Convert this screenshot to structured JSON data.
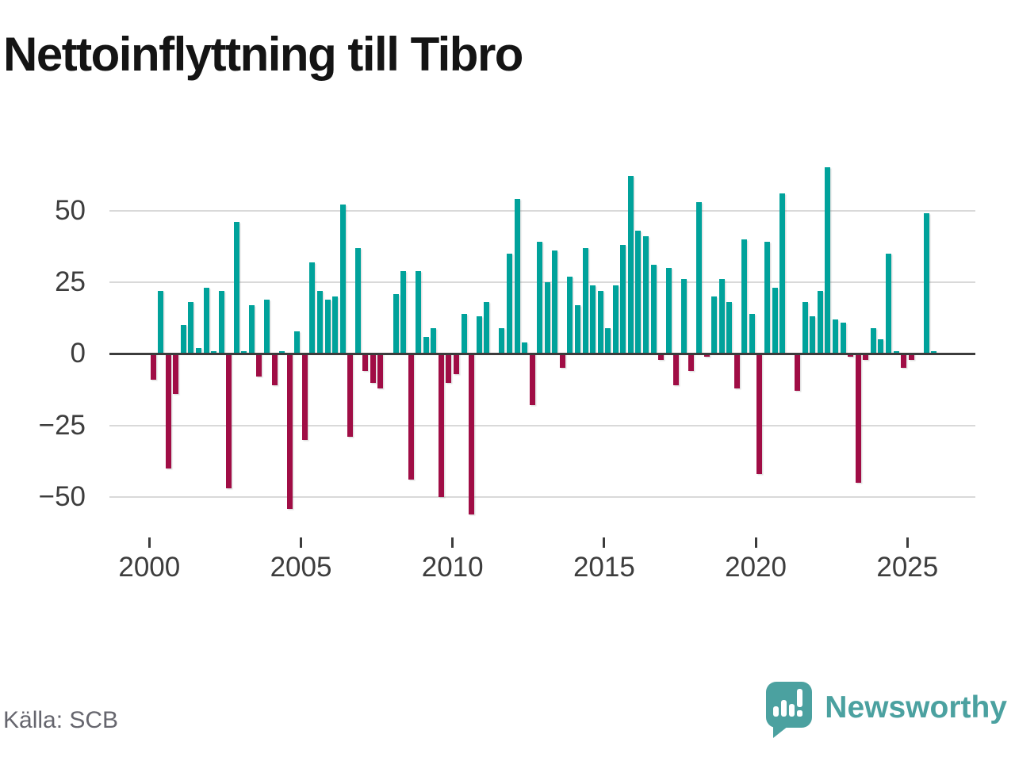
{
  "title": "Nettoinflyttning till Tibro",
  "source": "Källa: SCB",
  "branding": {
    "name": "Newsworthy",
    "logo": "newsworthy-speech-bubble-chart-icon"
  },
  "colors": {
    "positive_bar": "#00a29b",
    "negative_bar": "#a00d45",
    "grid": "#d9d9d9",
    "zero_line": "#3c3c3c",
    "axis_text": "#3d3d3d",
    "source_text": "#66666e",
    "brand": "#4ba1a0",
    "title_text": "#141414"
  },
  "chart_data": {
    "type": "bar",
    "title": "Nettoinflyttning till Tibro",
    "frequency": "quarterly",
    "start": "2000Q1",
    "end": "2025Q4",
    "xlabel": "",
    "ylabel": "",
    "ylim": [
      -62,
      70
    ],
    "y_ticks": [
      50,
      25,
      0,
      -25,
      -50
    ],
    "x_ticks": [
      2000,
      2005,
      2010,
      2015,
      2020,
      2025
    ],
    "grid": true,
    "legend": false,
    "values": [
      -9,
      22,
      -40,
      -14,
      10,
      18,
      2,
      23,
      1,
      22,
      -47,
      46,
      1,
      17,
      -8,
      19,
      -11,
      1,
      -54,
      8,
      -30,
      32,
      22,
      19,
      20,
      52,
      -29,
      37,
      -6,
      -10,
      -12,
      0,
      21,
      29,
      -44,
      29,
      6,
      9,
      -50,
      -10,
      -7,
      14,
      -56,
      13,
      18,
      0,
      9,
      35,
      54,
      4,
      -18,
      39,
      25,
      36,
      -5,
      27,
      17,
      37,
      24,
      22,
      9,
      24,
      38,
      62,
      43,
      41,
      31,
      -2,
      30,
      -11,
      26,
      -6,
      53,
      -1,
      20,
      26,
      18,
      -12,
      40,
      14,
      -42,
      39,
      23,
      56,
      0,
      -13,
      18,
      13,
      22,
      65,
      12,
      11,
      -1,
      -45,
      -2,
      9,
      5,
      35,
      1,
      -5,
      -2,
      0,
      49,
      1
    ]
  }
}
